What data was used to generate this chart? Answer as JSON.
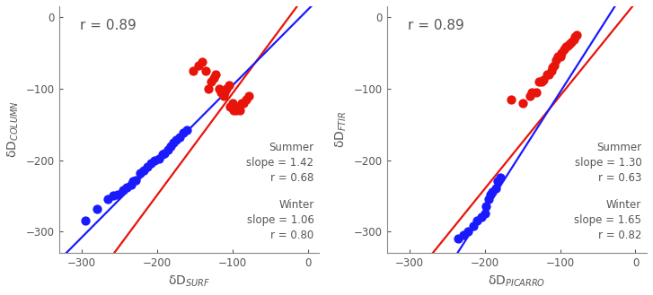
{
  "panel1": {
    "title_corr": "r = 0.89",
    "ylabel": "δD$_{COLUMN}$",
    "xlabel": "δD$_{SURF}$",
    "summer_slope": 1.42,
    "summer_intercept": 35,
    "summer_r": 0.68,
    "winter_slope": 1.06,
    "winter_intercept": 10,
    "winter_r": 0.8,
    "summer_color": "#e8140a",
    "winter_color": "#1a1aff",
    "summer_x": [
      -152,
      -145,
      -140,
      -135,
      -132,
      -128,
      -125,
      -122,
      -118,
      -115,
      -112,
      -110,
      -108,
      -105,
      -103,
      -100,
      -98,
      -95,
      -93,
      -90,
      -88,
      -85,
      -82,
      -78
    ],
    "summer_y": [
      -75,
      -68,
      -63,
      -75,
      -100,
      -90,
      -85,
      -80,
      -100,
      -105,
      -110,
      -105,
      -100,
      -95,
      -125,
      -120,
      -130,
      -130,
      -125,
      -130,
      -120,
      -120,
      -115,
      -110
    ],
    "winter_x": [
      -295,
      -280,
      -265,
      -258,
      -252,
      -245,
      -240,
      -235,
      -232,
      -228,
      -222,
      -218,
      -213,
      -208,
      -203,
      -198,
      -193,
      -190,
      -185,
      -182,
      -178,
      -175,
      -170,
      -165,
      -160
    ],
    "winter_y": [
      -285,
      -268,
      -255,
      -250,
      -248,
      -242,
      -238,
      -235,
      -230,
      -228,
      -218,
      -215,
      -210,
      -205,
      -200,
      -198,
      -192,
      -190,
      -185,
      -180,
      -175,
      -172,
      -168,
      -162,
      -158
    ]
  },
  "panel2": {
    "title_corr": "r = 0.89",
    "ylabel": "δD$_{FTIR}$",
    "xlabel": "δD$_{PICARRO}$",
    "summer_slope": 1.3,
    "summer_intercept": 20,
    "summer_r": 0.63,
    "winter_slope": 1.65,
    "winter_intercept": 60,
    "winter_r": 0.82,
    "summer_color": "#e8140a",
    "winter_color": "#1a1aff",
    "summer_x": [
      -165,
      -150,
      -140,
      -138,
      -132,
      -128,
      -125,
      -122,
      -118,
      -115,
      -112,
      -110,
      -108,
      -105,
      -103,
      -100,
      -98,
      -95,
      -92,
      -90,
      -88,
      -85,
      -82,
      -80,
      -78
    ],
    "summer_y": [
      -115,
      -120,
      -110,
      -105,
      -105,
      -90,
      -90,
      -88,
      -80,
      -80,
      -75,
      -70,
      -68,
      -60,
      -55,
      -55,
      -50,
      -45,
      -42,
      -40,
      -38,
      -35,
      -32,
      -28,
      -25
    ],
    "winter_x": [
      -235,
      -228,
      -222,
      -215,
      -210,
      -205,
      -200,
      -198,
      -195,
      -192,
      -190,
      -185,
      -183,
      -180
    ],
    "winter_y": [
      -310,
      -305,
      -300,
      -292,
      -285,
      -280,
      -275,
      -265,
      -255,
      -248,
      -245,
      -240,
      -230,
      -225
    ]
  },
  "xlim": [
    -330,
    15
  ],
  "ylim": [
    -330,
    15
  ],
  "xticks": [
    -300,
    -200,
    -100,
    0
  ],
  "yticks": [
    -300,
    -200,
    -100,
    0
  ],
  "text_color": "#555555",
  "annotation_fontsize": 8.5,
  "corr_fontsize": 11,
  "axis_label_fontsize": 10,
  "tick_fontsize": 8.5,
  "marker_size": 55,
  "line_width": 1.6,
  "line_xlim": [
    -340,
    15
  ]
}
